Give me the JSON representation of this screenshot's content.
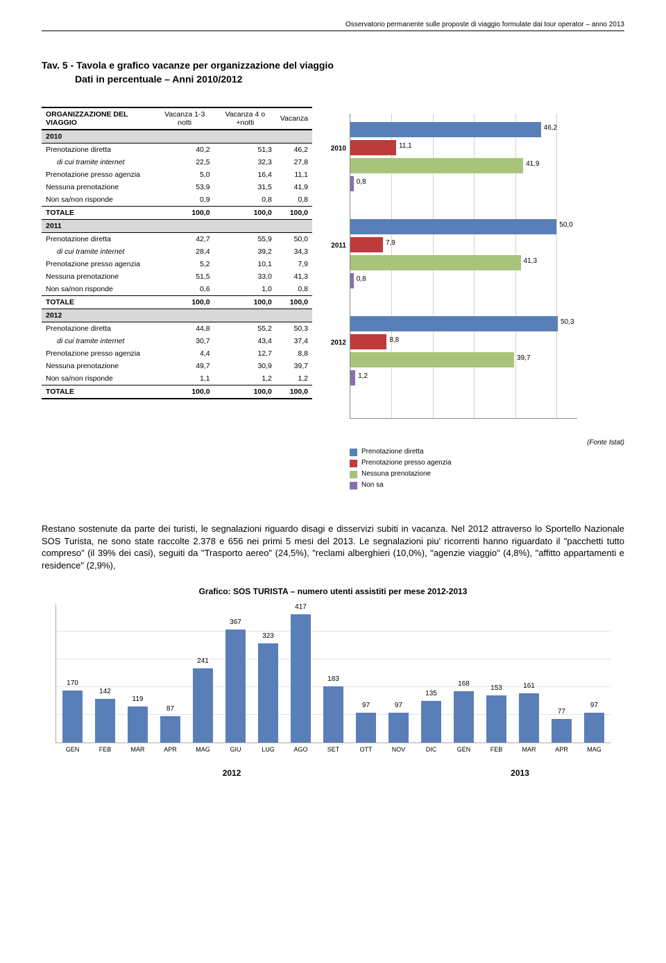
{
  "header": "Osservatorio permanente sulle proposte di viaggio formulate dai tour operator – anno 2013",
  "title_l1": "Tav. 5 - Tavola e grafico vacanze per organizzazione del viaggio",
  "title_l2": "Dati in percentuale – Anni 2010/2012",
  "table": {
    "head": [
      "ORGANIZZAZIONE DEL VIAGGIO",
      "Vacanza 1-3 notti",
      "Vacanza 4 o +notti",
      "Vacanza"
    ],
    "years": [
      "2010",
      "2011",
      "2012"
    ],
    "rows": {
      "2010": [
        {
          "label": "Prenotazione diretta",
          "v": [
            "40,2",
            "51,3",
            "46,2"
          ],
          "italic": false
        },
        {
          "label": "di cui tramite internet",
          "v": [
            "22,5",
            "32,3",
            "27,8"
          ],
          "italic": true
        },
        {
          "label": "Prenotazione presso agenzia",
          "v": [
            "5,0",
            "16,4",
            "11,1"
          ],
          "italic": false
        },
        {
          "label": "Nessuna prenotazione",
          "v": [
            "53,9",
            "31,5",
            "41,9"
          ],
          "italic": false
        },
        {
          "label": "Non sa/non risponde",
          "v": [
            "0,9",
            "0,8",
            "0,8"
          ],
          "italic": false
        },
        {
          "label": "TOTALE",
          "v": [
            "100,0",
            "100,0",
            "100,0"
          ],
          "total": true
        }
      ],
      "2011": [
        {
          "label": "Prenotazione diretta",
          "v": [
            "42,7",
            "55,9",
            "50,0"
          ],
          "italic": false
        },
        {
          "label": "di cui tramite internet",
          "v": [
            "28,4",
            "39,2",
            "34,3"
          ],
          "italic": true
        },
        {
          "label": "Prenotazione presso agenzia",
          "v": [
            "5,2",
            "10,1",
            "7,9"
          ],
          "italic": false
        },
        {
          "label": "Nessuna prenotazione",
          "v": [
            "51,5",
            "33,0",
            "41,3"
          ],
          "italic": false
        },
        {
          "label": "Non sa/non risponde",
          "v": [
            "0,6",
            "1,0",
            "0,8"
          ],
          "italic": false
        },
        {
          "label": "TOTALE",
          "v": [
            "100,0",
            "100,0",
            "100,0"
          ],
          "total": true
        }
      ],
      "2012": [
        {
          "label": "Prenotazione diretta",
          "v": [
            "44,8",
            "55,2",
            "50,3"
          ],
          "italic": false
        },
        {
          "label": "di cui tramite internet",
          "v": [
            "30,7",
            "43,4",
            "37,4"
          ],
          "italic": true
        },
        {
          "label": "Prenotazione presso agenzia",
          "v": [
            "4,4",
            "12,7",
            "8,8"
          ],
          "italic": false
        },
        {
          "label": "Nessuna prenotazione",
          "v": [
            "49,7",
            "30,9",
            "39,7"
          ],
          "italic": false
        },
        {
          "label": "Non sa/non risponde",
          "v": [
            "1,1",
            "1,2",
            "1,2"
          ],
          "italic": false
        },
        {
          "label": "TOTALE",
          "v": [
            "100,0",
            "100,0",
            "100,0"
          ],
          "total": true
        }
      ]
    }
  },
  "hchart": {
    "xmax": 55,
    "catgap": 36,
    "rowgap": 26,
    "colors": {
      "diretta": "#5a7fb8",
      "agenzia": "#bf3b3b",
      "nessuna": "#a7c47a",
      "nonsa": "#8a6fb0"
    },
    "years": [
      "2010",
      "2011",
      "2012"
    ],
    "data": {
      "2010": [
        {
          "key": "diretta",
          "val": 46.2,
          "label": "46,2"
        },
        {
          "key": "agenzia",
          "val": 11.1,
          "label": "11,1"
        },
        {
          "key": "nessuna",
          "val": 41.9,
          "label": "41,9"
        },
        {
          "key": "nonsa",
          "val": 0.8,
          "label": "0,8"
        }
      ],
      "2011": [
        {
          "key": "diretta",
          "val": 50.0,
          "label": "50,0"
        },
        {
          "key": "agenzia",
          "val": 7.9,
          "label": "7,9"
        },
        {
          "key": "nessuna",
          "val": 41.3,
          "label": "41,3"
        },
        {
          "key": "nonsa",
          "val": 0.8,
          "label": "0,8"
        }
      ],
      "2012": [
        {
          "key": "diretta",
          "val": 50.3,
          "label": "50,3"
        },
        {
          "key": "agenzia",
          "val": 8.8,
          "label": "8,8"
        },
        {
          "key": "nessuna",
          "val": 39.7,
          "label": "39,7"
        },
        {
          "key": "nonsa",
          "val": 1.2,
          "label": "1,2"
        }
      ]
    },
    "legend": [
      {
        "key": "diretta",
        "label": "Prenotazione diretta"
      },
      {
        "key": "agenzia",
        "label": "Prenotazione presso agenzia"
      },
      {
        "key": "nessuna",
        "label": "Nessuna prenotazione"
      },
      {
        "key": "nonsa",
        "label": "Non sa"
      }
    ],
    "fonte": "(Fonte Istat)"
  },
  "paragraph": "Restano sostenute da parte dei turisti, le segnalazioni riguardo disagi e disservizi subiti in vacanza. Nel 2012 attraverso lo Sportello Nazionale SOS Turista, ne sono state raccolte 2.378  e  656 nei primi 5 mesi del 2013. Le segnalazioni piu' ricorrenti hanno riguardato il \"pacchetti tutto compreso\" (il 39% dei casi),  seguiti da \"Trasporto aereo\" (24,5%), \"reclami alberghieri (10,0%), \"agenzie viaggio\" (4,8%), \"affitto appartamenti e residence\" (2,9%),",
  "bottom": {
    "title": "Grafico: SOS TURISTA – numero utenti assistiti per mese  2012-2013",
    "ymax": 450,
    "bar_color": "#5a7fb8",
    "months": [
      "GEN",
      "FEB",
      "MAR",
      "APR",
      "MAG",
      "GIU",
      "LUG",
      "AGO",
      "SET",
      "OTT",
      "NOV",
      "DIC",
      "GEN",
      "FEB",
      "MAR",
      "APR",
      "MAG"
    ],
    "values": [
      170,
      142,
      119,
      87,
      241,
      367,
      323,
      417,
      183,
      97,
      97,
      135,
      168,
      153,
      161,
      77,
      97
    ],
    "year_labels": [
      {
        "text": "2012",
        "pos_pct": 30
      },
      {
        "text": "2013",
        "pos_pct": 82
      }
    ]
  }
}
